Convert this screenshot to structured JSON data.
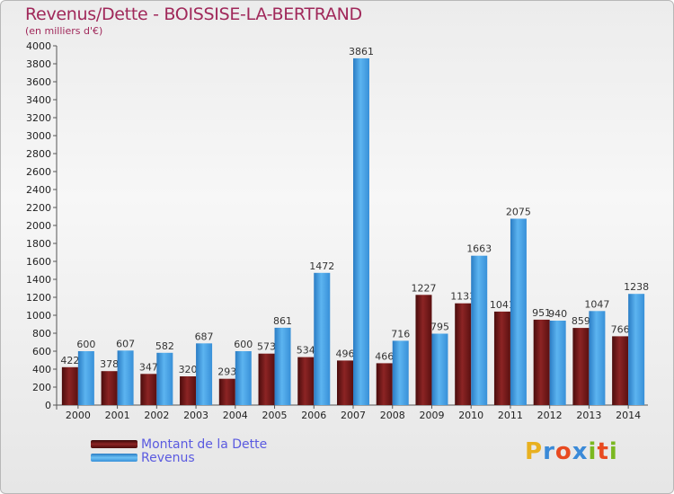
{
  "chart_data": {
    "type": "bar",
    "title": "Revenus/Dette - BOISSISE-LA-BERTRAND",
    "subtitle": "(en milliers d'€)",
    "categories": [
      "2000",
      "2001",
      "2002",
      "2003",
      "2004",
      "2005",
      "2006",
      "2007",
      "2008",
      "2009",
      "2010",
      "2011",
      "2012",
      "2013",
      "2014"
    ],
    "series": [
      {
        "name": "Montant de la Dette",
        "color": "#7a1a1a",
        "values": [
          422,
          378,
          347,
          320,
          293,
          573,
          534,
          496,
          466,
          1227,
          1133,
          1041,
          951,
          859,
          766
        ]
      },
      {
        "name": "Revenus",
        "color": "#4aa3e6",
        "values": [
          600,
          607,
          582,
          687,
          600,
          861,
          1472,
          3861,
          716,
          795,
          1663,
          2075,
          940,
          1047,
          1238
        ]
      }
    ],
    "ylim": [
      0,
      4000
    ],
    "ytick_step": 200,
    "grid": false,
    "legend_position": "bottom-left"
  },
  "logo": {
    "letters": [
      "P",
      "r",
      "o",
      "x",
      "i",
      "t",
      "i"
    ],
    "colors": [
      "#e8b020",
      "#3a8ad8",
      "#e84a20",
      "#3a8ad8",
      "#7ab820",
      "#e84a20",
      "#7ab820"
    ]
  }
}
